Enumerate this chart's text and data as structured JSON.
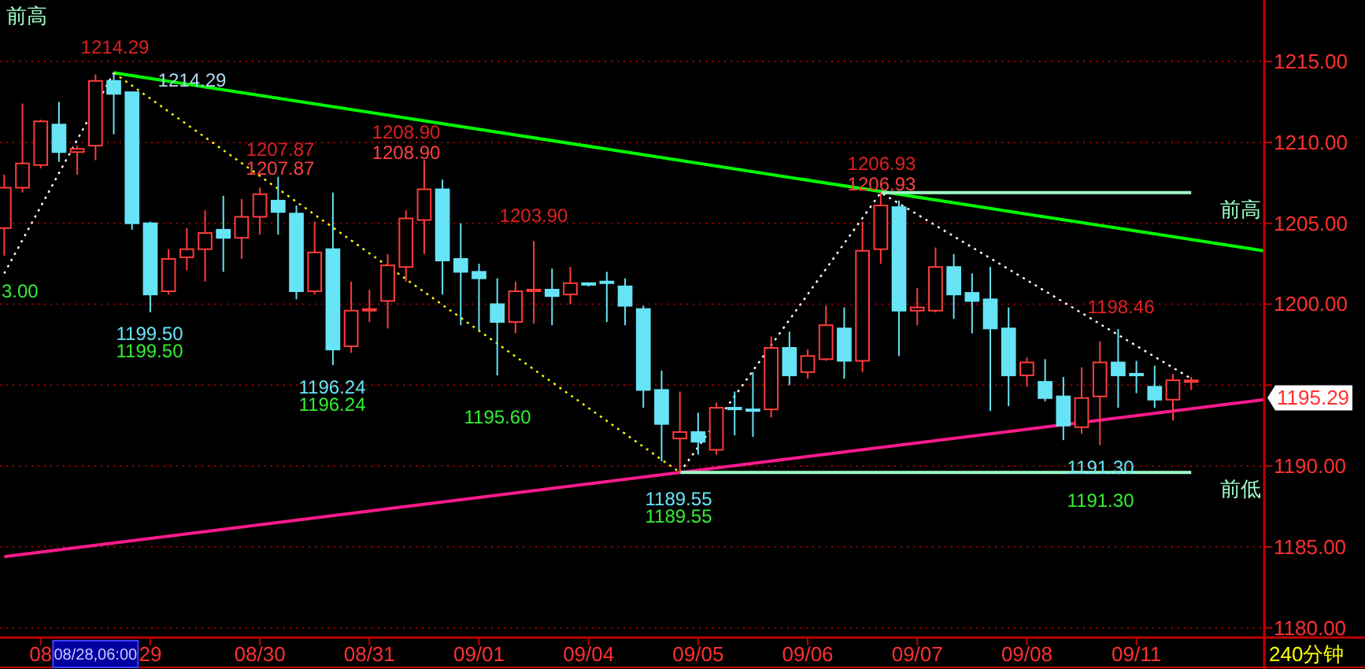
{
  "chart_data": {
    "type": "candlestick",
    "categories": [
      null,
      null,
      "08",
      null,
      null,
      null,
      null,
      null,
      "29",
      null,
      null,
      null,
      null,
      null,
      "08/30",
      null,
      null,
      null,
      null,
      null,
      "08/31",
      null,
      null,
      null,
      null,
      null,
      "09/01",
      null,
      null,
      null,
      null,
      null,
      "09/04",
      null,
      null,
      null,
      null,
      null,
      "09/05",
      null,
      null,
      null,
      null,
      null,
      "09/06",
      null,
      null,
      null,
      null,
      null,
      "09/07",
      null,
      null,
      null,
      null,
      null,
      "09/08",
      null,
      null,
      null,
      null,
      null,
      "09/11",
      null,
      null,
      null,
      null,
      null,
      null,
      null
    ],
    "ohlc": [
      [
        1204.7,
        1208.0,
        1203.0,
        1207.2
      ],
      [
        1207.2,
        1212.4,
        1206.9,
        1208.7
      ],
      [
        1208.6,
        1211.4,
        1208.4,
        1211.3
      ],
      [
        1211.1,
        1212.5,
        1208.8,
        1209.4
      ],
      [
        1209.4,
        1209.8,
        1208.0,
        1209.6
      ],
      [
        1209.8,
        1214.2,
        1208.9,
        1213.8
      ],
      [
        1213.8,
        1214.29,
        1210.5,
        1213.0
      ],
      [
        1213.1,
        1213.1,
        1204.6,
        1205.0
      ],
      [
        1205.0,
        1205.1,
        1199.5,
        1200.6
      ],
      [
        1200.8,
        1203.4,
        1200.6,
        1202.8
      ],
      [
        1202.9,
        1204.7,
        1202.1,
        1203.4
      ],
      [
        1203.4,
        1205.8,
        1201.4,
        1204.4
      ],
      [
        1204.6,
        1206.7,
        1202.0,
        1204.1
      ],
      [
        1204.1,
        1206.5,
        1202.8,
        1205.4
      ],
      [
        1205.4,
        1207.2,
        1204.3,
        1206.8
      ],
      [
        1206.4,
        1207.87,
        1204.3,
        1205.7
      ],
      [
        1205.6,
        1206.1,
        1200.3,
        1200.8
      ],
      [
        1200.8,
        1205.1,
        1200.6,
        1203.2
      ],
      [
        1203.4,
        1206.9,
        1196.24,
        1197.2
      ],
      [
        1197.4,
        1201.4,
        1197.0,
        1199.6
      ],
      [
        1199.6,
        1200.9,
        1198.9,
        1199.7
      ],
      [
        1200.2,
        1203.1,
        1198.5,
        1202.4
      ],
      [
        1202.3,
        1205.8,
        1201.4,
        1205.3
      ],
      [
        1205.2,
        1208.9,
        1203.1,
        1207.1
      ],
      [
        1207.1,
        1207.7,
        1200.6,
        1202.7
      ],
      [
        1202.8,
        1205.0,
        1198.7,
        1202.0
      ],
      [
        1202.0,
        1202.5,
        1198.4,
        1201.6
      ],
      [
        1200.0,
        1201.6,
        1195.6,
        1198.9
      ],
      [
        1198.9,
        1201.4,
        1198.2,
        1200.8
      ],
      [
        1200.8,
        1203.9,
        1198.8,
        1200.9
      ],
      [
        1200.9,
        1202.2,
        1198.7,
        1200.5
      ],
      [
        1200.6,
        1202.3,
        1200.0,
        1201.3
      ],
      [
        1201.3,
        1201.3,
        1201.1,
        1201.2
      ],
      [
        1201.4,
        1202.0,
        1198.9,
        1201.3
      ],
      [
        1201.1,
        1201.6,
        1198.7,
        1199.9
      ],
      [
        1199.7,
        1199.9,
        1193.6,
        1194.7
      ],
      [
        1194.7,
        1195.9,
        1190.3,
        1192.6
      ],
      [
        1191.7,
        1194.6,
        1189.55,
        1192.1
      ],
      [
        1192.1,
        1193.3,
        1190.7,
        1191.5
      ],
      [
        1191.0,
        1193.9,
        1190.7,
        1193.6
      ],
      [
        1193.6,
        1194.6,
        1191.9,
        1193.5
      ],
      [
        1193.5,
        1195.8,
        1191.8,
        1193.4
      ],
      [
        1193.5,
        1198.0,
        1193.0,
        1197.3
      ],
      [
        1197.3,
        1198.3,
        1195.0,
        1195.6
      ],
      [
        1195.8,
        1197.2,
        1195.4,
        1196.8
      ],
      [
        1196.6,
        1199.9,
        1196.5,
        1198.7
      ],
      [
        1198.5,
        1199.8,
        1195.4,
        1196.5
      ],
      [
        1196.5,
        1205.1,
        1195.8,
        1203.3
      ],
      [
        1203.4,
        1206.93,
        1202.5,
        1206.1
      ],
      [
        1206.0,
        1206.4,
        1196.8,
        1199.6
      ],
      [
        1199.6,
        1201.0,
        1198.7,
        1199.8
      ],
      [
        1199.6,
        1203.5,
        1199.5,
        1202.3
      ],
      [
        1202.3,
        1203.1,
        1199.1,
        1200.6
      ],
      [
        1200.7,
        1201.9,
        1198.2,
        1200.2
      ],
      [
        1200.3,
        1202.3,
        1193.4,
        1198.5
      ],
      [
        1198.5,
        1199.8,
        1193.7,
        1195.6
      ],
      [
        1195.6,
        1196.7,
        1194.9,
        1196.4
      ],
      [
        1195.2,
        1196.6,
        1194.0,
        1194.2
      ],
      [
        1194.3,
        1195.5,
        1191.6,
        1192.5
      ],
      [
        1192.4,
        1196.1,
        1192.0,
        1194.2
      ],
      [
        1194.3,
        1197.7,
        1191.3,
        1196.4
      ],
      [
        1196.4,
        1198.46,
        1193.6,
        1195.6
      ],
      [
        1195.7,
        1196.5,
        1194.5,
        1195.6
      ],
      [
        1194.9,
        1196.2,
        1193.6,
        1194.1
      ],
      [
        1194.1,
        1195.7,
        1192.8,
        1195.3
      ],
      [
        1195.2,
        1195.5,
        1194.7,
        1195.29
      ],
      null,
      null,
      null,
      null
    ],
    "colors": [
      "#ff3c3c",
      "#ff3c3c",
      "#ff3c3c",
      "#66e4f6",
      "#ff3c3c",
      "#ff3c3c",
      "#66e4f6",
      "#66e4f6",
      "#66e4f6",
      "#ff3c3c",
      "#ff3c3c",
      "#ff3c3c",
      "#66e4f6",
      "#ff3c3c",
      "#ff3c3c",
      "#66e4f6",
      "#66e4f6",
      "#ff3c3c",
      "#66e4f6",
      "#ff3c3c",
      "#ff3c3c",
      "#ff3c3c",
      "#ff3c3c",
      "#ff3c3c",
      "#66e4f6",
      "#66e4f6",
      "#66e4f6",
      "#66e4f6",
      "#ff3c3c",
      "#ff3c3c",
      "#66e4f6",
      "#ff3c3c",
      "#66e4f6",
      "#66e4f6",
      "#66e4f6",
      "#66e4f6",
      "#66e4f6",
      "#ff3c3c",
      "#66e4f6",
      "#ff3c3c",
      "#66e4f6",
      "#66e4f6",
      "#ff3c3c",
      "#66e4f6",
      "#ff3c3c",
      "#ff3c3c",
      "#66e4f6",
      "#ff3c3c",
      "#ff3c3c",
      "#66e4f6",
      "#ff3c3c",
      "#ff3c3c",
      "#66e4f6",
      "#66e4f6",
      "#66e4f6",
      "#66e4f6",
      "#ff3c3c",
      "#66e4f6",
      "#66e4f6",
      "#ff3c3c",
      "#ff3c3c",
      "#66e4f6",
      "#66e4f6",
      "#66e4f6",
      "#ff3c3c",
      "#ff3c3c",
      null,
      null,
      null,
      null
    ],
    "ylim": [
      1179.4,
      1218.8
    ],
    "yticks": [
      {
        "value": 1180,
        "label": "1180.00"
      },
      {
        "value": 1185,
        "label": "1185.00"
      },
      {
        "value": 1190,
        "label": "1190.00"
      },
      {
        "value": 1195,
        "label": null
      },
      {
        "value": 1200,
        "label": "1200.00"
      },
      {
        "value": 1205,
        "label": "1205.00"
      },
      {
        "value": 1210,
        "label": "1210.00"
      },
      {
        "value": 1215,
        "label": "1215.00"
      }
    ],
    "grid": "y",
    "series": [
      {
        "type": "line",
        "color": "#00ff00",
        "values": [
          null,
          null,
          null,
          null,
          null,
          null,
          1214.3,
          null,
          null,
          null,
          null,
          null,
          null,
          null,
          null,
          null,
          null,
          null,
          null,
          null,
          null,
          null,
          null,
          null,
          null,
          null,
          null,
          null,
          null,
          null,
          null,
          null,
          null,
          null,
          null,
          null,
          null,
          null,
          null,
          null,
          null,
          null,
          null,
          null,
          null,
          null,
          null,
          null,
          null,
          null,
          null,
          null,
          null,
          null,
          null,
          null,
          null,
          null,
          null,
          null,
          null,
          null,
          null,
          null,
          null,
          null,
          null,
          null,
          null,
          1203.3
        ]
      },
      {
        "type": "line",
        "color": "#ff1a8c",
        "values": [
          1184.4,
          null,
          null,
          null,
          null,
          null,
          null,
          null,
          null,
          null,
          null,
          null,
          null,
          null,
          null,
          null,
          null,
          null,
          null,
          null,
          null,
          null,
          null,
          null,
          null,
          null,
          null,
          null,
          null,
          null,
          null,
          null,
          null,
          null,
          null,
          null,
          null,
          null,
          null,
          null,
          null,
          null,
          null,
          null,
          null,
          null,
          null,
          null,
          null,
          null,
          null,
          null,
          null,
          null,
          null,
          null,
          null,
          null,
          null,
          null,
          null,
          null,
          null,
          null,
          null,
          null,
          null,
          null,
          null,
          1194.1
        ]
      },
      {
        "type": "line",
        "color": "#ffff00",
        "line_style": "dotted",
        "values": [
          null,
          null,
          null,
          null,
          null,
          null,
          1214.3,
          null,
          null,
          null,
          null,
          null,
          null,
          null,
          null,
          null,
          null,
          null,
          null,
          null,
          null,
          null,
          null,
          null,
          null,
          null,
          null,
          null,
          null,
          null,
          null,
          null,
          null,
          null,
          null,
          null,
          null,
          1189.6,
          null,
          null,
          null,
          null,
          null,
          null,
          null,
          null,
          null,
          null,
          null,
          null,
          null,
          null,
          null,
          null,
          null,
          null,
          null,
          null,
          null,
          null,
          null,
          null,
          null,
          null,
          null,
          null,
          null,
          null,
          null,
          null
        ]
      },
      {
        "type": "line",
        "color": "#ffffff",
        "line_style": "dotted",
        "values": [
          1201.9,
          null,
          null,
          null,
          null,
          null,
          1214.3,
          null,
          null,
          null,
          null,
          null,
          null,
          null,
          null,
          null,
          null,
          null,
          null,
          null,
          null,
          null,
          null,
          null,
          null,
          null,
          null,
          null,
          null,
          null,
          null,
          null,
          null,
          null,
          null,
          null,
          null,
          null,
          null,
          null,
          null,
          null,
          null,
          null,
          null,
          null,
          null,
          null,
          null,
          null,
          null,
          null,
          null,
          null,
          null,
          null,
          null,
          null,
          null,
          null,
          null,
          null,
          null,
          null,
          null,
          null,
          null,
          null,
          null,
          null
        ]
      },
      {
        "type": "line",
        "color": "#ffffff",
        "line_style": "dotted",
        "values": [
          null,
          null,
          null,
          null,
          null,
          null,
          null,
          null,
          null,
          null,
          null,
          null,
          null,
          null,
          null,
          null,
          null,
          null,
          null,
          null,
          null,
          null,
          null,
          null,
          null,
          null,
          null,
          null,
          null,
          null,
          null,
          null,
          null,
          null,
          null,
          null,
          null,
          1189.6,
          null,
          null,
          null,
          null,
          null,
          null,
          null,
          null,
          null,
          null,
          1206.9,
          null,
          null,
          null,
          null,
          null,
          null,
          null,
          null,
          null,
          null,
          null,
          null,
          null,
          null,
          null,
          null,
          1195.4,
          null,
          null,
          null,
          null
        ]
      },
      {
        "type": "line",
        "name": "前高",
        "color": "#a0ffc8",
        "values": [
          null,
          null,
          null,
          null,
          null,
          null,
          null,
          null,
          null,
          null,
          null,
          null,
          null,
          null,
          null,
          null,
          null,
          null,
          null,
          null,
          null,
          null,
          null,
          null,
          null,
          null,
          null,
          null,
          null,
          null,
          null,
          null,
          null,
          null,
          null,
          null,
          null,
          null,
          null,
          null,
          null,
          null,
          null,
          null,
          null,
          null,
          null,
          null,
          1206.9,
          null,
          null,
          null,
          null,
          null,
          null,
          null,
          null,
          null,
          null,
          null,
          null,
          null,
          null,
          null,
          null,
          1206.9,
          null,
          null,
          null,
          null
        ]
      },
      {
        "type": "line",
        "name": "前低",
        "color": "#a0ffc8",
        "values": [
          null,
          null,
          null,
          null,
          null,
          null,
          null,
          null,
          null,
          null,
          null,
          null,
          null,
          null,
          null,
          null,
          null,
          null,
          null,
          null,
          null,
          null,
          null,
          null,
          null,
          null,
          null,
          null,
          null,
          null,
          null,
          null,
          null,
          null,
          null,
          null,
          null,
          1189.6,
          null,
          null,
          null,
          null,
          null,
          null,
          null,
          null,
          null,
          null,
          null,
          null,
          null,
          null,
          null,
          null,
          null,
          null,
          null,
          null,
          null,
          null,
          null,
          null,
          null,
          null,
          null,
          1189.6,
          null,
          null,
          null,
          null
        ]
      }
    ],
    "annotations": [
      "前高",
      "08/28,06:00",
      "240分钟",
      "1214.29",
      "1214.29",
      "1207.87",
      "1207.87",
      "1208.90",
      "1208.90",
      "1203.90",
      "1206.93",
      "1206.93",
      "1198.46",
      "1199.50",
      "1199.50",
      "1196.24",
      "1196.24",
      "1195.60",
      "1189.55",
      "1189.55",
      "1191.30",
      "1191.30",
      "3.00",
      "1195.29"
    ]
  }
}
